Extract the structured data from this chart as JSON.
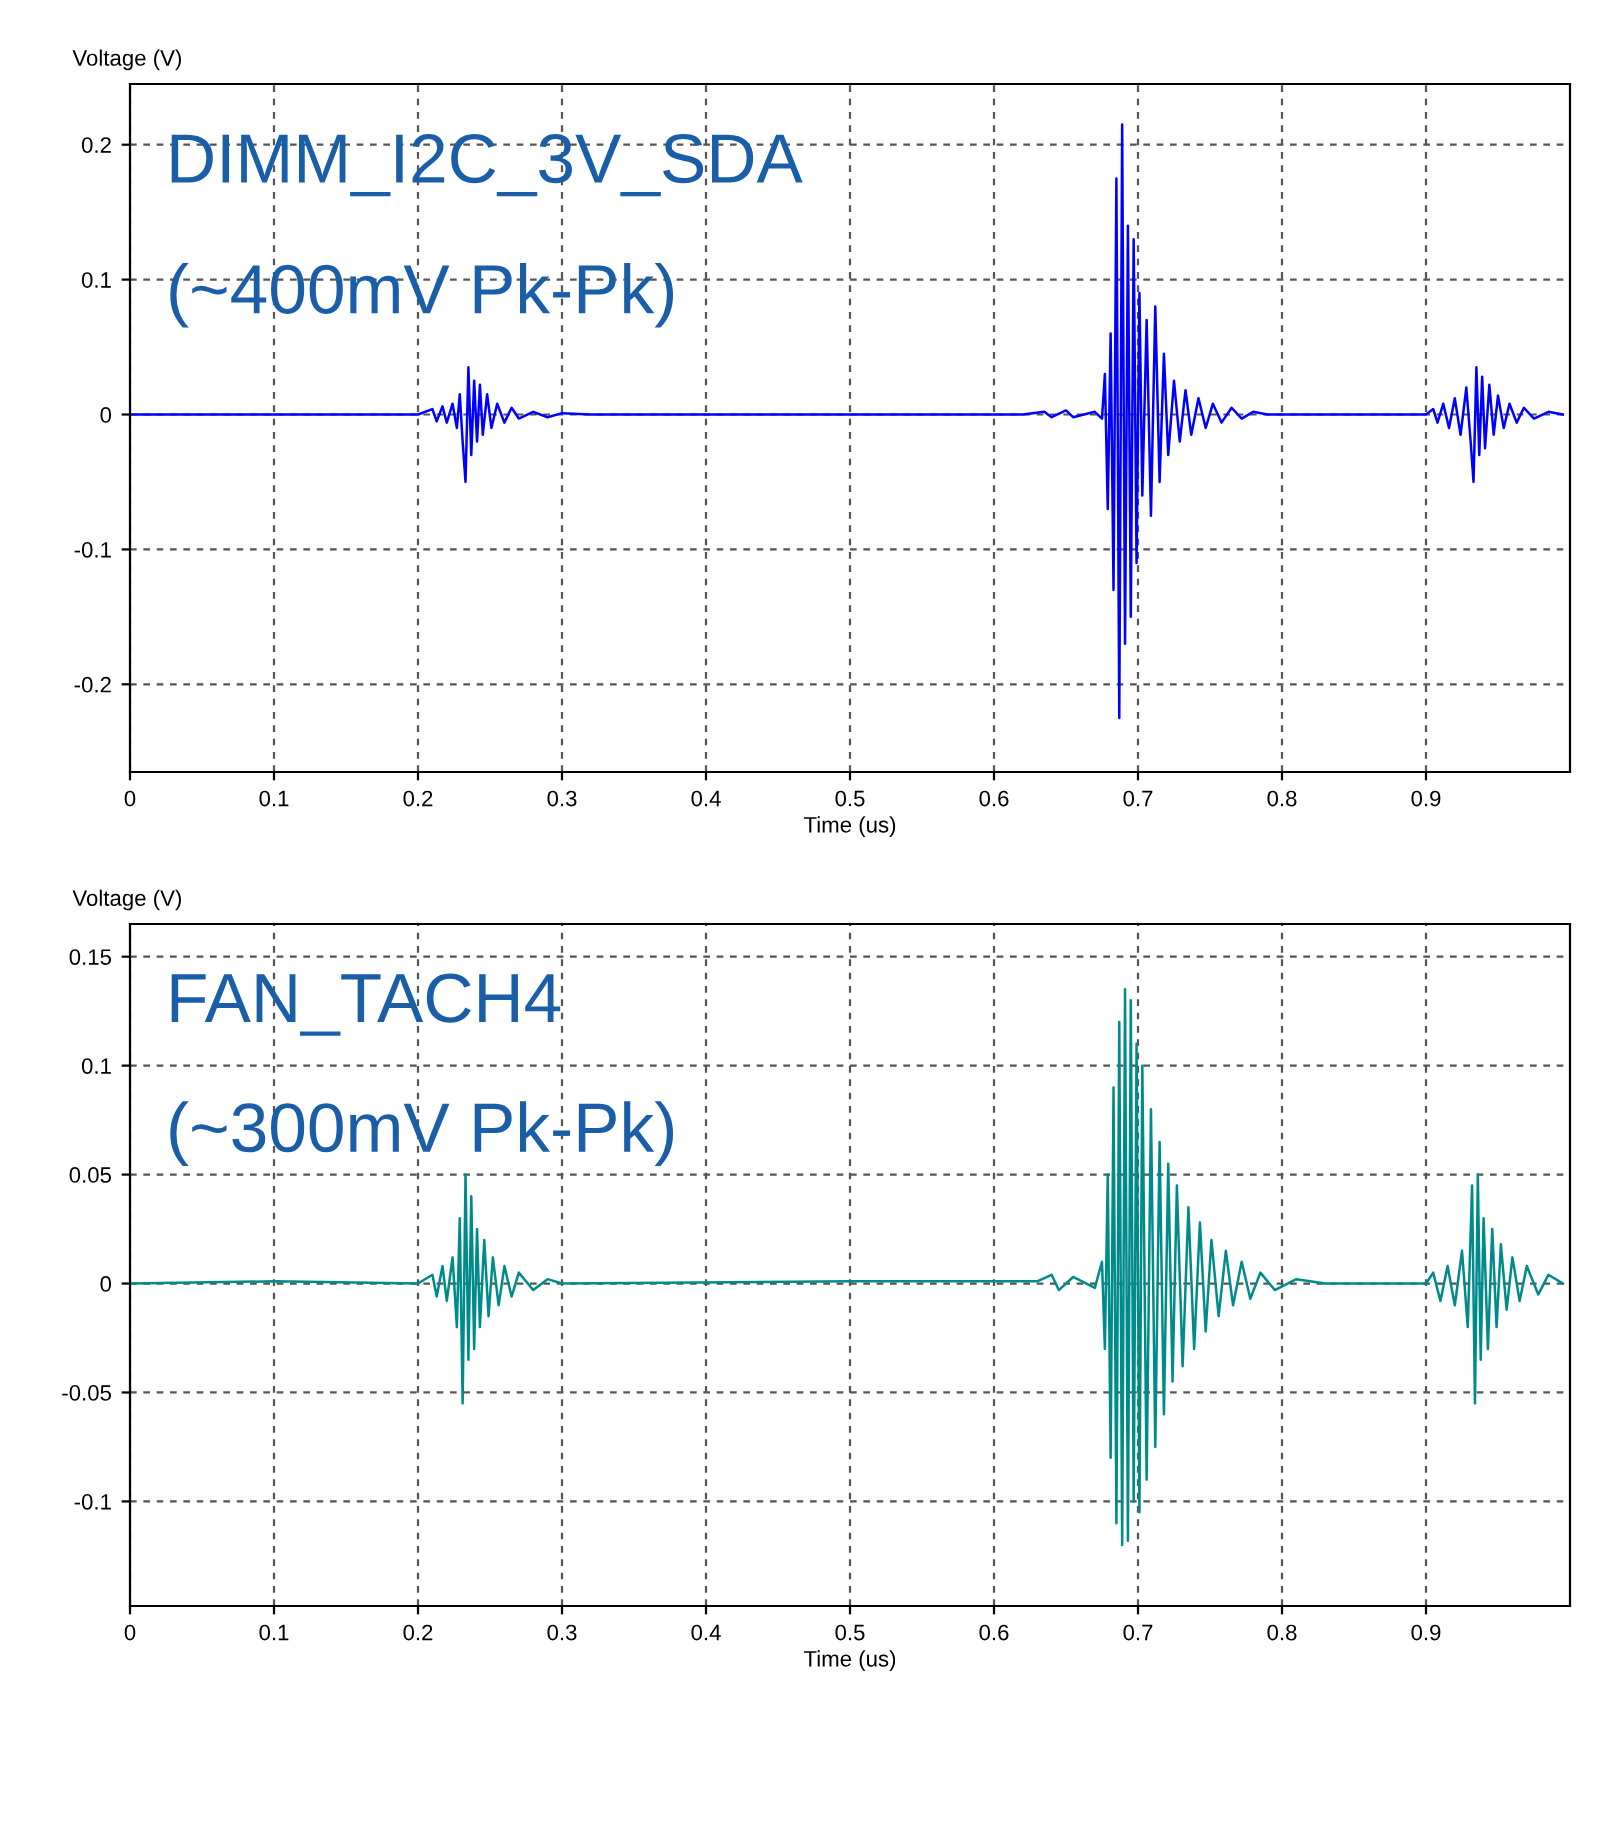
{
  "chart_data": [
    {
      "type": "line",
      "xlabel": "Time (us)",
      "ylabel": "Voltage (V)",
      "annotations": [
        "DIMM_I2C_3V_SDA",
        "(~400mV Pk-Pk)"
      ],
      "xlim": [
        0,
        1
      ],
      "xticks": [
        0,
        0.1,
        0.2,
        0.3,
        0.4,
        0.5,
        0.6,
        0.7,
        0.8,
        0.9
      ],
      "ylim": [
        -0.265,
        0.245
      ],
      "yticks": [
        -0.2,
        -0.1,
        0,
        0.1,
        0.2
      ],
      "grid": true,
      "line_style": "solid",
      "series": [
        {
          "color": "#0000ff",
          "x": [
            0,
            0.2,
            0.21,
            0.213,
            0.217,
            0.22,
            0.224,
            0.227,
            0.229,
            0.231,
            0.233,
            0.235,
            0.237,
            0.239,
            0.241,
            0.243,
            0.245,
            0.248,
            0.251,
            0.255,
            0.26,
            0.265,
            0.27,
            0.28,
            0.29,
            0.3,
            0.32,
            0.62,
            0.635,
            0.64,
            0.65,
            0.655,
            0.67,
            0.675,
            0.677,
            0.679,
            0.681,
            0.683,
            0.685,
            0.687,
            0.689,
            0.691,
            0.693,
            0.695,
            0.697,
            0.699,
            0.701,
            0.703,
            0.706,
            0.709,
            0.712,
            0.715,
            0.718,
            0.721,
            0.725,
            0.729,
            0.733,
            0.737,
            0.742,
            0.747,
            0.752,
            0.758,
            0.765,
            0.772,
            0.78,
            0.79,
            0.9,
            0.905,
            0.908,
            0.912,
            0.916,
            0.92,
            0.924,
            0.928,
            0.931,
            0.933,
            0.935,
            0.937,
            0.939,
            0.941,
            0.944,
            0.947,
            0.95,
            0.954,
            0.958,
            0.963,
            0.968,
            0.975,
            0.985,
            0.995
          ],
          "values": [
            0,
            0,
            0.004,
            -0.005,
            0.006,
            -0.006,
            0.008,
            -0.01,
            0.015,
            -0.02,
            -0.05,
            0.035,
            -0.03,
            0.025,
            -0.02,
            0.022,
            -0.015,
            0.015,
            -0.01,
            0.008,
            -0.006,
            0.005,
            -0.003,
            0.002,
            -0.002,
            0.001,
            0,
            0,
            0.002,
            -0.002,
            0.003,
            -0.002,
            0.002,
            -0.003,
            0.03,
            -0.07,
            0.06,
            -0.13,
            0.175,
            -0.225,
            0.215,
            -0.17,
            0.14,
            -0.15,
            0.13,
            -0.11,
            0.09,
            -0.06,
            0.07,
            -0.075,
            0.08,
            -0.05,
            0.045,
            -0.03,
            0.025,
            -0.02,
            0.018,
            -0.015,
            0.012,
            -0.01,
            0.008,
            -0.006,
            0.005,
            -0.003,
            0.002,
            0,
            0,
            0.004,
            -0.006,
            0.008,
            -0.01,
            0.012,
            -0.015,
            0.02,
            -0.02,
            -0.05,
            0.035,
            -0.03,
            0.028,
            -0.025,
            0.022,
            -0.015,
            0.014,
            -0.01,
            0.008,
            -0.006,
            0.005,
            -0.003,
            0.002,
            0
          ]
        }
      ]
    },
    {
      "type": "line",
      "xlabel": "Time (us)",
      "ylabel": "Voltage (V)",
      "annotations": [
        "FAN_TACH4",
        "(~300mV Pk-Pk)"
      ],
      "xlim": [
        0,
        1
      ],
      "xticks": [
        0,
        0.1,
        0.2,
        0.3,
        0.4,
        0.5,
        0.6,
        0.7,
        0.8,
        0.9
      ],
      "ylim": [
        -0.148,
        0.165
      ],
      "yticks": [
        -0.1,
        -0.05,
        0,
        0.05,
        0.1,
        0.15
      ],
      "grid": true,
      "line_style": "solid",
      "series": [
        {
          "color": "#008b8b",
          "x": [
            0,
            0.1,
            0.2,
            0.21,
            0.213,
            0.217,
            0.22,
            0.224,
            0.227,
            0.229,
            0.231,
            0.233,
            0.235,
            0.237,
            0.239,
            0.241,
            0.243,
            0.246,
            0.249,
            0.252,
            0.256,
            0.26,
            0.265,
            0.27,
            0.28,
            0.29,
            0.3,
            0.5,
            0.63,
            0.64,
            0.645,
            0.655,
            0.67,
            0.675,
            0.677,
            0.679,
            0.681,
            0.683,
            0.685,
            0.687,
            0.689,
            0.691,
            0.693,
            0.695,
            0.697,
            0.699,
            0.701,
            0.703,
            0.706,
            0.709,
            0.712,
            0.715,
            0.718,
            0.721,
            0.724,
            0.727,
            0.731,
            0.735,
            0.739,
            0.743,
            0.747,
            0.751,
            0.756,
            0.761,
            0.766,
            0.772,
            0.778,
            0.785,
            0.795,
            0.81,
            0.83,
            0.9,
            0.905,
            0.91,
            0.915,
            0.92,
            0.925,
            0.929,
            0.932,
            0.934,
            0.936,
            0.938,
            0.94,
            0.943,
            0.946,
            0.949,
            0.952,
            0.956,
            0.96,
            0.965,
            0.97,
            0.978,
            0.985,
            0.995
          ],
          "values": [
            0,
            0.001,
            0,
            0.004,
            -0.006,
            0.008,
            -0.008,
            0.012,
            -0.02,
            0.03,
            -0.055,
            0.05,
            -0.035,
            0.04,
            -0.03,
            0.025,
            -0.02,
            0.02,
            -0.015,
            0.012,
            -0.01,
            0.008,
            -0.006,
            0.005,
            -0.003,
            0.002,
            0,
            0.001,
            0.001,
            0.004,
            -0.003,
            0.003,
            -0.002,
            0.01,
            -0.03,
            0.05,
            -0.08,
            0.09,
            -0.11,
            0.12,
            -0.12,
            0.135,
            -0.118,
            0.13,
            -0.1,
            0.11,
            -0.105,
            0.1,
            -0.09,
            0.08,
            -0.075,
            0.065,
            -0.06,
            0.055,
            -0.045,
            0.045,
            -0.038,
            0.035,
            -0.03,
            0.028,
            -0.022,
            0.02,
            -0.015,
            0.015,
            -0.01,
            0.01,
            -0.007,
            0.005,
            -0.003,
            0.002,
            0,
            0,
            0.005,
            -0.008,
            0.008,
            -0.01,
            0.015,
            -0.02,
            0.045,
            -0.055,
            0.05,
            -0.035,
            0.03,
            -0.03,
            0.025,
            -0.02,
            0.018,
            -0.012,
            0.012,
            -0.008,
            0.008,
            -0.005,
            0.004,
            0
          ]
        }
      ]
    }
  ]
}
